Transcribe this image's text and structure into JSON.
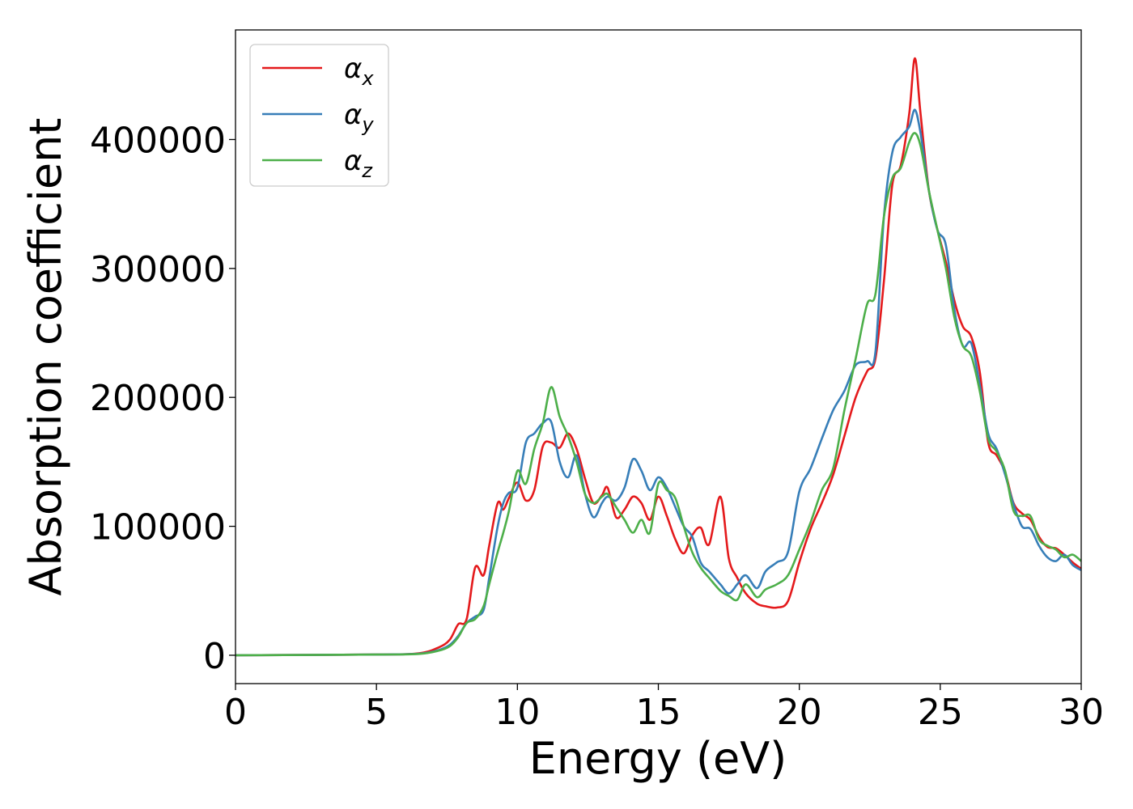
{
  "chart_data": {
    "type": "line",
    "title": "",
    "xlabel": "Energy (eV)",
    "ylabel": "Absorption coefficient",
    "xlim": [
      0,
      30
    ],
    "ylim": [
      -22000,
      485000
    ],
    "xticks": [
      0,
      5,
      10,
      15,
      20,
      25,
      30
    ],
    "xtick_labels": [
      "0",
      "5",
      "10",
      "15",
      "20",
      "25",
      "30"
    ],
    "yticks": [
      0,
      100000,
      200000,
      300000,
      400000
    ],
    "ytick_labels": [
      "0",
      "100000",
      "200000",
      "300000",
      "400000"
    ],
    "grid": false,
    "legend_position": "top-left",
    "series": [
      {
        "name": "α_x",
        "symbol": "α",
        "subscript": "x",
        "color": "#e41a1c",
        "points": [
          [
            0,
            0
          ],
          [
            5,
            500
          ],
          [
            6.5,
            1500
          ],
          [
            7.2,
            6000
          ],
          [
            7.6,
            12000
          ],
          [
            7.9,
            24000
          ],
          [
            8.2,
            28000
          ],
          [
            8.5,
            68000
          ],
          [
            8.8,
            62000
          ],
          [
            9.0,
            85000
          ],
          [
            9.3,
            118000
          ],
          [
            9.5,
            113000
          ],
          [
            9.7,
            122000
          ],
          [
            10.0,
            134000
          ],
          [
            10.3,
            120000
          ],
          [
            10.6,
            128000
          ],
          [
            10.9,
            162000
          ],
          [
            11.2,
            165000
          ],
          [
            11.5,
            161000
          ],
          [
            11.8,
            172000
          ],
          [
            12.1,
            160000
          ],
          [
            12.4,
            137000
          ],
          [
            12.7,
            118000
          ],
          [
            13.0,
            124000
          ],
          [
            13.2,
            130000
          ],
          [
            13.5,
            107000
          ],
          [
            13.8,
            113000
          ],
          [
            14.1,
            123000
          ],
          [
            14.4,
            118000
          ],
          [
            14.7,
            105000
          ],
          [
            15.0,
            123000
          ],
          [
            15.3,
            108000
          ],
          [
            15.6,
            90000
          ],
          [
            15.9,
            79000
          ],
          [
            16.2,
            93000
          ],
          [
            16.5,
            99000
          ],
          [
            16.8,
            86000
          ],
          [
            17.2,
            123000
          ],
          [
            17.5,
            75000
          ],
          [
            17.8,
            60000
          ],
          [
            18.1,
            48000
          ],
          [
            18.5,
            40000
          ],
          [
            18.8,
            38000
          ],
          [
            19.2,
            37000
          ],
          [
            19.6,
            42000
          ],
          [
            20.0,
            72000
          ],
          [
            20.4,
            98000
          ],
          [
            20.8,
            118000
          ],
          [
            21.2,
            140000
          ],
          [
            21.6,
            170000
          ],
          [
            22.0,
            200000
          ],
          [
            22.4,
            220000
          ],
          [
            22.7,
            230000
          ],
          [
            23.0,
            290000
          ],
          [
            23.3,
            365000
          ],
          [
            23.6,
            380000
          ],
          [
            23.9,
            420000
          ],
          [
            24.1,
            463000
          ],
          [
            24.3,
            420000
          ],
          [
            24.6,
            360000
          ],
          [
            24.9,
            330000
          ],
          [
            25.2,
            305000
          ],
          [
            25.5,
            275000
          ],
          [
            25.8,
            255000
          ],
          [
            26.1,
            247000
          ],
          [
            26.4,
            220000
          ],
          [
            26.7,
            165000
          ],
          [
            27.0,
            155000
          ],
          [
            27.3,
            142000
          ],
          [
            27.6,
            118000
          ],
          [
            27.9,
            110000
          ],
          [
            28.2,
            105000
          ],
          [
            28.5,
            92000
          ],
          [
            28.8,
            84000
          ],
          [
            29.1,
            83000
          ],
          [
            29.4,
            78000
          ],
          [
            29.7,
            72000
          ],
          [
            30.0,
            67000
          ]
        ]
      },
      {
        "name": "α_y",
        "symbol": "α",
        "subscript": "y",
        "color": "#377eb8",
        "points": [
          [
            0,
            0
          ],
          [
            5,
            500
          ],
          [
            6.5,
            1200
          ],
          [
            7.2,
            4000
          ],
          [
            7.6,
            8000
          ],
          [
            7.9,
            15000
          ],
          [
            8.2,
            25000
          ],
          [
            8.5,
            30000
          ],
          [
            8.8,
            35000
          ],
          [
            9.0,
            60000
          ],
          [
            9.3,
            100000
          ],
          [
            9.5,
            118000
          ],
          [
            9.7,
            126000
          ],
          [
            10.0,
            130000
          ],
          [
            10.3,
            165000
          ],
          [
            10.6,
            172000
          ],
          [
            10.9,
            180000
          ],
          [
            11.2,
            181000
          ],
          [
            11.5,
            150000
          ],
          [
            11.8,
            138000
          ],
          [
            12.1,
            155000
          ],
          [
            12.4,
            125000
          ],
          [
            12.7,
            107000
          ],
          [
            13.0,
            118000
          ],
          [
            13.2,
            123000
          ],
          [
            13.5,
            120000
          ],
          [
            13.8,
            130000
          ],
          [
            14.1,
            152000
          ],
          [
            14.4,
            143000
          ],
          [
            14.7,
            128000
          ],
          [
            15.0,
            138000
          ],
          [
            15.3,
            130000
          ],
          [
            15.6,
            115000
          ],
          [
            15.9,
            100000
          ],
          [
            16.2,
            92000
          ],
          [
            16.5,
            72000
          ],
          [
            16.8,
            65000
          ],
          [
            17.2,
            55000
          ],
          [
            17.5,
            48000
          ],
          [
            17.8,
            55000
          ],
          [
            18.1,
            62000
          ],
          [
            18.5,
            52000
          ],
          [
            18.8,
            65000
          ],
          [
            19.2,
            72000
          ],
          [
            19.6,
            80000
          ],
          [
            20.0,
            127000
          ],
          [
            20.4,
            145000
          ],
          [
            20.8,
            168000
          ],
          [
            21.2,
            190000
          ],
          [
            21.6,
            205000
          ],
          [
            22.0,
            225000
          ],
          [
            22.4,
            228000
          ],
          [
            22.7,
            235000
          ],
          [
            23.0,
            340000
          ],
          [
            23.3,
            390000
          ],
          [
            23.6,
            402000
          ],
          [
            23.9,
            410000
          ],
          [
            24.1,
            423000
          ],
          [
            24.3,
            405000
          ],
          [
            24.6,
            360000
          ],
          [
            24.9,
            330000
          ],
          [
            25.2,
            318000
          ],
          [
            25.5,
            268000
          ],
          [
            25.8,
            240000
          ],
          [
            26.1,
            242000
          ],
          [
            26.4,
            210000
          ],
          [
            26.7,
            172000
          ],
          [
            27.0,
            160000
          ],
          [
            27.3,
            140000
          ],
          [
            27.6,
            117000
          ],
          [
            27.9,
            100000
          ],
          [
            28.2,
            98000
          ],
          [
            28.5,
            85000
          ],
          [
            28.8,
            76000
          ],
          [
            29.1,
            73000
          ],
          [
            29.4,
            78000
          ],
          [
            29.7,
            70000
          ],
          [
            30.0,
            66000
          ]
        ]
      },
      {
        "name": "α_z",
        "symbol": "α",
        "subscript": "z",
        "color": "#4daf4a",
        "points": [
          [
            0,
            0
          ],
          [
            5,
            500
          ],
          [
            6.5,
            1000
          ],
          [
            7.2,
            3500
          ],
          [
            7.6,
            7000
          ],
          [
            7.9,
            14000
          ],
          [
            8.2,
            25000
          ],
          [
            8.5,
            28000
          ],
          [
            8.8,
            38000
          ],
          [
            9.0,
            55000
          ],
          [
            9.3,
            80000
          ],
          [
            9.5,
            95000
          ],
          [
            9.7,
            112000
          ],
          [
            10.0,
            143000
          ],
          [
            10.3,
            133000
          ],
          [
            10.6,
            160000
          ],
          [
            10.9,
            180000
          ],
          [
            11.2,
            208000
          ],
          [
            11.5,
            185000
          ],
          [
            11.8,
            170000
          ],
          [
            12.1,
            150000
          ],
          [
            12.4,
            125000
          ],
          [
            12.7,
            118000
          ],
          [
            13.0,
            123000
          ],
          [
            13.2,
            125000
          ],
          [
            13.5,
            115000
          ],
          [
            13.8,
            105000
          ],
          [
            14.1,
            95000
          ],
          [
            14.4,
            105000
          ],
          [
            14.7,
            95000
          ],
          [
            15.0,
            133000
          ],
          [
            15.3,
            128000
          ],
          [
            15.6,
            122000
          ],
          [
            15.9,
            100000
          ],
          [
            16.2,
            80000
          ],
          [
            16.5,
            68000
          ],
          [
            16.8,
            60000
          ],
          [
            17.2,
            50000
          ],
          [
            17.5,
            46000
          ],
          [
            17.8,
            43000
          ],
          [
            18.1,
            55000
          ],
          [
            18.5,
            45000
          ],
          [
            18.8,
            51000
          ],
          [
            19.2,
            55000
          ],
          [
            19.6,
            62000
          ],
          [
            20.0,
            82000
          ],
          [
            20.4,
            103000
          ],
          [
            20.8,
            128000
          ],
          [
            21.2,
            145000
          ],
          [
            21.6,
            190000
          ],
          [
            22.0,
            230000
          ],
          [
            22.4,
            272000
          ],
          [
            22.7,
            280000
          ],
          [
            23.0,
            340000
          ],
          [
            23.3,
            370000
          ],
          [
            23.6,
            378000
          ],
          [
            23.9,
            398000
          ],
          [
            24.1,
            405000
          ],
          [
            24.3,
            395000
          ],
          [
            24.6,
            360000
          ],
          [
            24.9,
            330000
          ],
          [
            25.2,
            300000
          ],
          [
            25.5,
            262000
          ],
          [
            25.8,
            240000
          ],
          [
            26.1,
            232000
          ],
          [
            26.4,
            205000
          ],
          [
            26.7,
            168000
          ],
          [
            27.0,
            158000
          ],
          [
            27.3,
            143000
          ],
          [
            27.6,
            112000
          ],
          [
            27.9,
            108000
          ],
          [
            28.2,
            108000
          ],
          [
            28.5,
            90000
          ],
          [
            28.8,
            85000
          ],
          [
            29.1,
            82000
          ],
          [
            29.4,
            76000
          ],
          [
            29.7,
            78000
          ],
          [
            30.0,
            73000
          ]
        ]
      }
    ]
  }
}
